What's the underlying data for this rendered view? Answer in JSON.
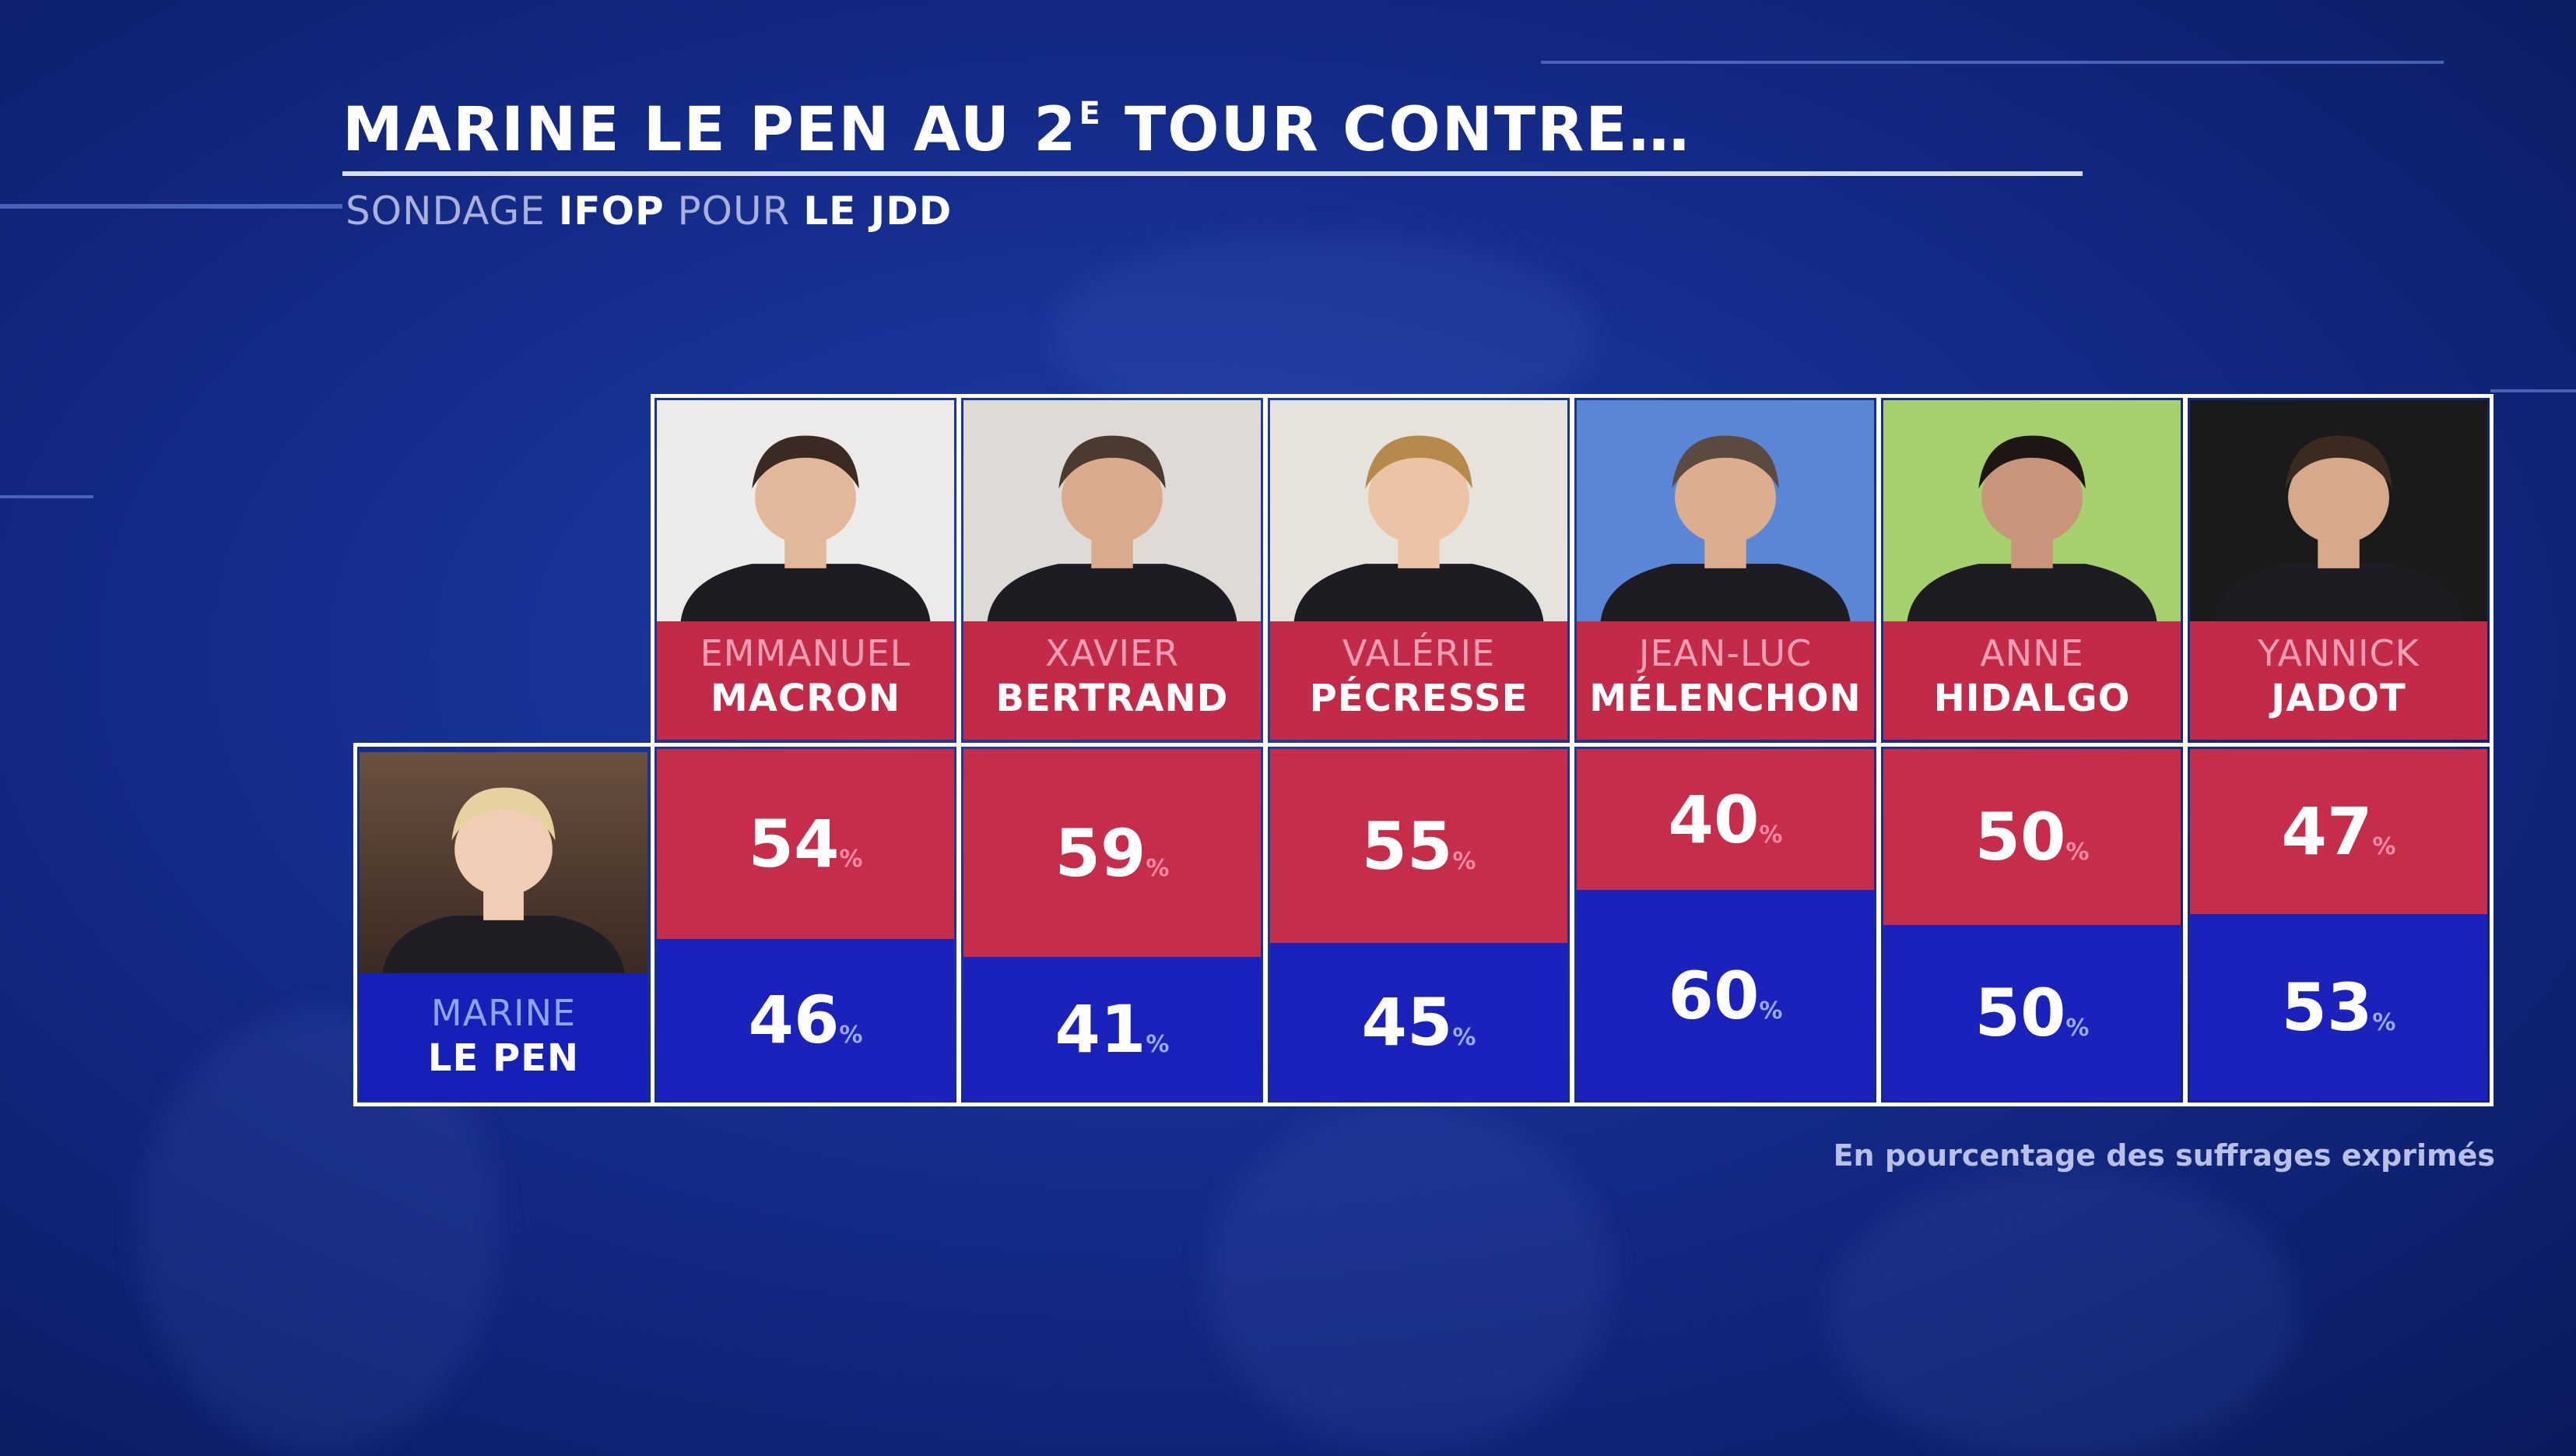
{
  "header": {
    "title_main": "MARINE LE PEN AU 2",
    "title_sup": "E",
    "title_end": " TOUR CONTRE…",
    "subtitle_part1": "SONDAGE ",
    "subtitle_source": "IFOP",
    "subtitle_part2": " POUR ",
    "subtitle_media": "LE JDD"
  },
  "colors": {
    "red": "#c62d4a",
    "blue": "#1a22bb",
    "background": "#142c8c"
  },
  "chart_data": {
    "type": "bar",
    "title": "MARINE LE PEN AU 2E TOUR CONTRE…",
    "subtitle": "SONDAGE IFOP POUR LE JDD",
    "row_label": {
      "first": "MARINE",
      "last": "LE PEN"
    },
    "categories": [
      {
        "first": "EMMANUEL",
        "last": "MACRON"
      },
      {
        "first": "XAVIER",
        "last": "BERTRAND"
      },
      {
        "first": "VALÉRIE",
        "last": "PÉCRESSE"
      },
      {
        "first": "JEAN-LUC",
        "last": "MÉLENCHON"
      },
      {
        "first": "ANNE",
        "last": "HIDALGO"
      },
      {
        "first": "YANNICK",
        "last": "JADOT"
      }
    ],
    "series": [
      {
        "values": [
          54,
          59,
          55,
          40,
          50,
          47
        ],
        "color": "#c62d4a"
      },
      {
        "values": [
          46,
          41,
          45,
          60,
          50,
          53
        ],
        "color": "#1a22bb"
      }
    ],
    "unit": "%",
    "ylim": [
      0,
      100
    ],
    "note": "En pourcentage des suffrages exprimés"
  }
}
